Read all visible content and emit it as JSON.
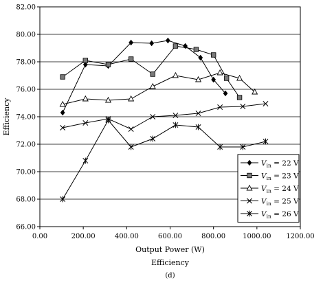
{
  "chart_data": {
    "type": "line",
    "xlabel": "Output Power (W)",
    "ylabel": "Efficiency",
    "caption": "Efficiency",
    "panel": "(d)",
    "xlim": [
      0,
      1200
    ],
    "ylim": [
      66,
      82
    ],
    "xticks": [
      "0.00",
      "200.00",
      "400.00",
      "600.00",
      "800.00",
      "1000.00",
      "1200.00"
    ],
    "yticks": [
      "66.00",
      "68.00",
      "70.00",
      "72.00",
      "74.00",
      "76.00",
      "78.00",
      "80.00",
      "82.00"
    ],
    "grid": "horizontal",
    "legend_position": "bottom-right",
    "series": [
      {
        "name": "V_in = 22 V",
        "label_v": "V",
        "label_sub": "in",
        "label_rest": " = 22 V",
        "marker": "diamond",
        "x": [
          105,
          210,
          315,
          420,
          515,
          590,
          670,
          740,
          800,
          855
        ],
        "y": [
          74.3,
          77.8,
          77.7,
          79.4,
          79.35,
          79.55,
          79.15,
          78.3,
          76.7,
          75.7
        ]
      },
      {
        "name": "V_in = 23 V",
        "label_v": "V",
        "label_sub": "in",
        "label_rest": " = 23 V",
        "marker": "square",
        "x": [
          105,
          210,
          315,
          420,
          520,
          625,
          720,
          800,
          860,
          920
        ],
        "y": [
          76.9,
          78.1,
          77.8,
          78.2,
          77.1,
          79.15,
          78.9,
          78.5,
          76.8,
          75.4
        ]
      },
      {
        "name": "V_in = 24 V",
        "label_v": "V",
        "label_sub": "in",
        "label_rest": " = 24 V",
        "marker": "triangle",
        "x": [
          105,
          210,
          315,
          420,
          520,
          625,
          730,
          830,
          920,
          990
        ],
        "y": [
          74.9,
          75.3,
          75.2,
          75.3,
          76.2,
          77.0,
          76.7,
          77.2,
          76.8,
          75.8
        ]
      },
      {
        "name": "V_in = 25 V",
        "label_v": "V",
        "label_sub": "in",
        "label_rest": " = 25 V",
        "marker": "x",
        "x": [
          105,
          210,
          315,
          420,
          520,
          625,
          730,
          830,
          935,
          1040
        ],
        "y": [
          73.2,
          73.55,
          73.85,
          73.1,
          74.0,
          74.1,
          74.25,
          74.7,
          74.75,
          74.95
        ]
      },
      {
        "name": "V_in = 26 V",
        "label_v": "V",
        "label_sub": "in",
        "label_rest": " = 26 V",
        "marker": "star",
        "x": [
          105,
          210,
          315,
          420,
          520,
          625,
          730,
          830,
          935,
          1040
        ],
        "y": [
          68.0,
          70.8,
          73.75,
          71.8,
          72.4,
          73.4,
          73.25,
          71.8,
          71.8,
          72.2
        ]
      }
    ]
  }
}
